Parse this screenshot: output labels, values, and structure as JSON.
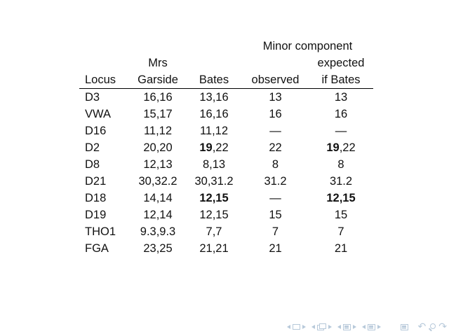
{
  "slide": {
    "background": "#ffffff",
    "text_color": "#111111",
    "rule_color": "#000000"
  },
  "table": {
    "header": {
      "minor_component": "Minor component",
      "mrs": "Mrs",
      "expected": "expected",
      "locus": "Locus",
      "garside": "Garside",
      "bates": "Bates",
      "observed": "observed",
      "if_bates": "if Bates"
    },
    "rows": [
      [
        [
          {
            "text": "D3"
          }
        ],
        [
          {
            "text": "16,16"
          }
        ],
        [
          {
            "text": "13,16"
          }
        ],
        [
          {
            "text": "13"
          }
        ],
        [
          {
            "text": "13"
          }
        ]
      ],
      [
        [
          {
            "text": "VWA"
          }
        ],
        [
          {
            "text": "15,17"
          }
        ],
        [
          {
            "text": "16,16"
          }
        ],
        [
          {
            "text": "16"
          }
        ],
        [
          {
            "text": "16"
          }
        ]
      ],
      [
        [
          {
            "text": "D16"
          }
        ],
        [
          {
            "text": "11,12"
          }
        ],
        [
          {
            "text": "11,12"
          }
        ],
        [
          {
            "text": "—"
          }
        ],
        [
          {
            "text": "—"
          }
        ]
      ],
      [
        [
          {
            "text": "D2"
          }
        ],
        [
          {
            "text": "20,20"
          }
        ],
        [
          {
            "text": "19",
            "bold": true
          },
          {
            "text": ",22"
          }
        ],
        [
          {
            "text": "22"
          }
        ],
        [
          {
            "text": "19",
            "bold": true
          },
          {
            "text": ",22"
          }
        ]
      ],
      [
        [
          {
            "text": "D8"
          }
        ],
        [
          {
            "text": "12,13"
          }
        ],
        [
          {
            "text": "8,13"
          }
        ],
        [
          {
            "text": "8"
          }
        ],
        [
          {
            "text": "8"
          }
        ]
      ],
      [
        [
          {
            "text": "D21"
          }
        ],
        [
          {
            "text": "30,32.2"
          }
        ],
        [
          {
            "text": "30,31.2"
          }
        ],
        [
          {
            "text": "31.2"
          }
        ],
        [
          {
            "text": "31.2"
          }
        ]
      ],
      [
        [
          {
            "text": "D18"
          }
        ],
        [
          {
            "text": "14,14"
          }
        ],
        [
          {
            "text": "12,15",
            "bold": true
          }
        ],
        [
          {
            "text": "—"
          }
        ],
        [
          {
            "text": "12,15",
            "bold": true
          }
        ]
      ],
      [
        [
          {
            "text": "D19"
          }
        ],
        [
          {
            "text": "12,14"
          }
        ],
        [
          {
            "text": "12,15"
          }
        ],
        [
          {
            "text": "15"
          }
        ],
        [
          {
            "text": "15"
          }
        ]
      ],
      [
        [
          {
            "text": "THO1"
          }
        ],
        [
          {
            "text": "9.3,9.3"
          }
        ],
        [
          {
            "text": "7,7"
          }
        ],
        [
          {
            "text": "7"
          }
        ],
        [
          {
            "text": "7"
          }
        ]
      ],
      [
        [
          {
            "text": "FGA"
          }
        ],
        [
          {
            "text": "23,25"
          }
        ],
        [
          {
            "text": "21,21"
          }
        ],
        [
          {
            "text": "21"
          }
        ],
        [
          {
            "text": "21"
          }
        ]
      ]
    ]
  },
  "nav_bar": {
    "color": "#b7c9da",
    "groups": [
      {
        "id": "slide",
        "items": [
          "prev-slide",
          "slide",
          "next-slide"
        ]
      },
      {
        "id": "frame",
        "items": [
          "prev-frame",
          "frame",
          "next-frame"
        ]
      },
      {
        "id": "subsection",
        "items": [
          "prev-subsection",
          "subsection",
          "next-subsection"
        ]
      },
      {
        "id": "section",
        "items": [
          "prev-section",
          "section",
          "next-section"
        ]
      },
      {
        "id": "presentation",
        "items": [
          "presentation"
        ]
      },
      {
        "id": "tools",
        "items": [
          "back",
          "find",
          "forward"
        ]
      }
    ]
  }
}
